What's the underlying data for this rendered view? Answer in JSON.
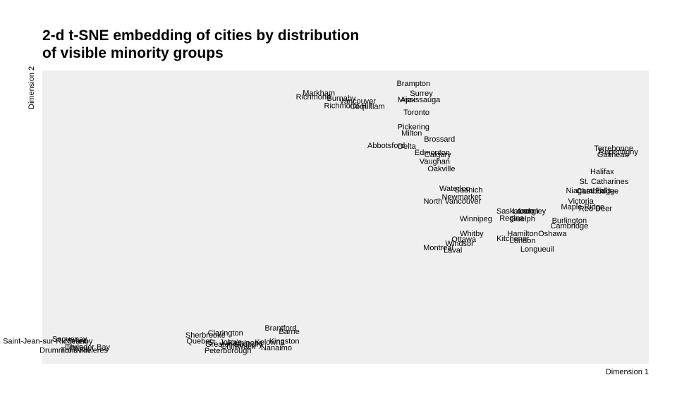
{
  "chart_data": {
    "type": "scatter",
    "title_lines": [
      "2-d t-SNE embedding of cities by distribution",
      "of visible minority groups"
    ],
    "xlabel": "Dimension 1",
    "ylabel": "Dimension 2",
    "xlim": [
      0,
      100
    ],
    "ylim": [
      0,
      100
    ],
    "grid": false,
    "points": [
      {
        "label": "Brampton",
        "x": 61.2,
        "y": 95.4
      },
      {
        "label": "Markham",
        "x": 45.6,
        "y": 92.2
      },
      {
        "label": "Surrey",
        "x": 62.5,
        "y": 92.0
      },
      {
        "label": "Richmond",
        "x": 44.7,
        "y": 90.9
      },
      {
        "label": "Burnaby",
        "x": 49.3,
        "y": 90.4
      },
      {
        "label": "Mississauga",
        "x": 62.1,
        "y": 89.9
      },
      {
        "label": "Ajax",
        "x": 60.3,
        "y": 89.9
      },
      {
        "label": "Vancouver",
        "x": 52.0,
        "y": 89.4
      },
      {
        "label": "Richmond Hill",
        "x": 50.4,
        "y": 87.8
      },
      {
        "label": "Coquitlam",
        "x": 53.6,
        "y": 87.6
      },
      {
        "label": "Toronto",
        "x": 61.7,
        "y": 85.6
      },
      {
        "label": "Pickering",
        "x": 61.2,
        "y": 80.6
      },
      {
        "label": "Milton",
        "x": 60.9,
        "y": 78.5
      },
      {
        "label": "Brossard",
        "x": 65.5,
        "y": 76.4
      },
      {
        "label": "Abbotsford",
        "x": 56.7,
        "y": 74.2
      },
      {
        "label": "Delta",
        "x": 60.1,
        "y": 74.0
      },
      {
        "label": "Edmonton",
        "x": 64.3,
        "y": 71.8
      },
      {
        "label": "Calgary",
        "x": 65.2,
        "y": 71.1
      },
      {
        "label": "Vaughan",
        "x": 64.7,
        "y": 68.9
      },
      {
        "label": "Oakville",
        "x": 65.8,
        "y": 66.3
      },
      {
        "label": "Terrebonne",
        "x": 94.2,
        "y": 73.3
      },
      {
        "label": "Repentigny",
        "x": 95.0,
        "y": 72.1
      },
      {
        "label": "Gatineau",
        "x": 94.1,
        "y": 71.1
      },
      {
        "label": "Halifax",
        "x": 92.3,
        "y": 65.4
      },
      {
        "label": "St. Catharines",
        "x": 92.6,
        "y": 62.0
      },
      {
        "label": "Niagara Falls",
        "x": 90.1,
        "y": 58.9
      },
      {
        "label": "Cambridge",
        "x": 91.2,
        "y": 58.7
      },
      {
        "label": "Lethbridge",
        "x": 92.0,
        "y": 58.7
      },
      {
        "label": "Victoria",
        "x": 88.8,
        "y": 55.3
      },
      {
        "label": "Maple Ridge",
        "x": 89.1,
        "y": 53.4
      },
      {
        "label": "Red Deer",
        "x": 91.2,
        "y": 52.7
      },
      {
        "label": "Waterloo",
        "x": 68.0,
        "y": 59.6
      },
      {
        "label": "Saanich",
        "x": 70.3,
        "y": 59.1
      },
      {
        "label": "Newmarket",
        "x": 69.1,
        "y": 56.7
      },
      {
        "label": "North Vancouver",
        "x": 67.6,
        "y": 55.3
      },
      {
        "label": "Saskatoon",
        "x": 77.9,
        "y": 51.9
      },
      {
        "label": "Langley",
        "x": 80.8,
        "y": 51.9
      },
      {
        "label": "Regina",
        "x": 77.4,
        "y": 49.5
      },
      {
        "label": "Guelph",
        "x": 79.2,
        "y": 49.3
      },
      {
        "label": "London",
        "x": 79.7,
        "y": 51.9
      },
      {
        "label": "Winnipeg",
        "x": 71.5,
        "y": 49.3
      },
      {
        "label": "Burlington",
        "x": 86.9,
        "y": 48.6
      },
      {
        "label": "Cambridge",
        "x": 86.9,
        "y": 46.9
      },
      {
        "label": "Whitby",
        "x": 70.8,
        "y": 44.2
      },
      {
        "label": "Hamilton",
        "x": 79.2,
        "y": 44.2
      },
      {
        "label": "Oshawa",
        "x": 84.1,
        "y": 44.2
      },
      {
        "label": "Ottawa",
        "x": 69.5,
        "y": 42.3
      },
      {
        "label": "Kitchener",
        "x": 77.6,
        "y": 42.5
      },
      {
        "label": "London",
        "x": 79.2,
        "y": 41.8
      },
      {
        "label": "Windsor",
        "x": 68.8,
        "y": 40.8
      },
      {
        "label": "Montreal",
        "x": 65.3,
        "y": 39.4
      },
      {
        "label": "Laval",
        "x": 67.7,
        "y": 38.5
      },
      {
        "label": "Longueuil",
        "x": 81.6,
        "y": 38.9
      },
      {
        "label": "Saguenay",
        "x": 4.5,
        "y": 8.3
      },
      {
        "label": "Saint-Jean-sur-Richelieu",
        "x": 0.5,
        "y": 7.5
      },
      {
        "label": "Granby",
        "x": 6.2,
        "y": 7.5
      },
      {
        "label": "Levis",
        "x": 5.2,
        "y": 5.5
      },
      {
        "label": "Thunder Bay",
        "x": 7.5,
        "y": 5.5
      },
      {
        "label": "Drummondville",
        "x": 3.8,
        "y": 4.4
      },
      {
        "label": "Trois-Rivieres",
        "x": 6.9,
        "y": 4.4
      },
      {
        "label": "Clarington",
        "x": 30.2,
        "y": 10.3
      },
      {
        "label": "Sherbrooke",
        "x": 26.9,
        "y": 9.6
      },
      {
        "label": "Brantford",
        "x": 39.3,
        "y": 12.0
      },
      {
        "label": "Barrie",
        "x": 40.7,
        "y": 10.8
      },
      {
        "label": "Quebec",
        "x": 26.0,
        "y": 7.5
      },
      {
        "label": "St. John's",
        "x": 30.1,
        "y": 7.2
      },
      {
        "label": "Kamloops",
        "x": 33.5,
        "y": 6.9
      },
      {
        "label": "Kelowna",
        "x": 37.5,
        "y": 7.2
      },
      {
        "label": "Kingston",
        "x": 39.9,
        "y": 7.5
      },
      {
        "label": "Greater Sudbury",
        "x": 31.6,
        "y": 6.5
      },
      {
        "label": "Chilliwack",
        "x": 32.3,
        "y": 5.8
      },
      {
        "label": "Nanaimo",
        "x": 38.6,
        "y": 5.3
      },
      {
        "label": "Peterborough",
        "x": 30.6,
        "y": 4.3
      }
    ]
  }
}
